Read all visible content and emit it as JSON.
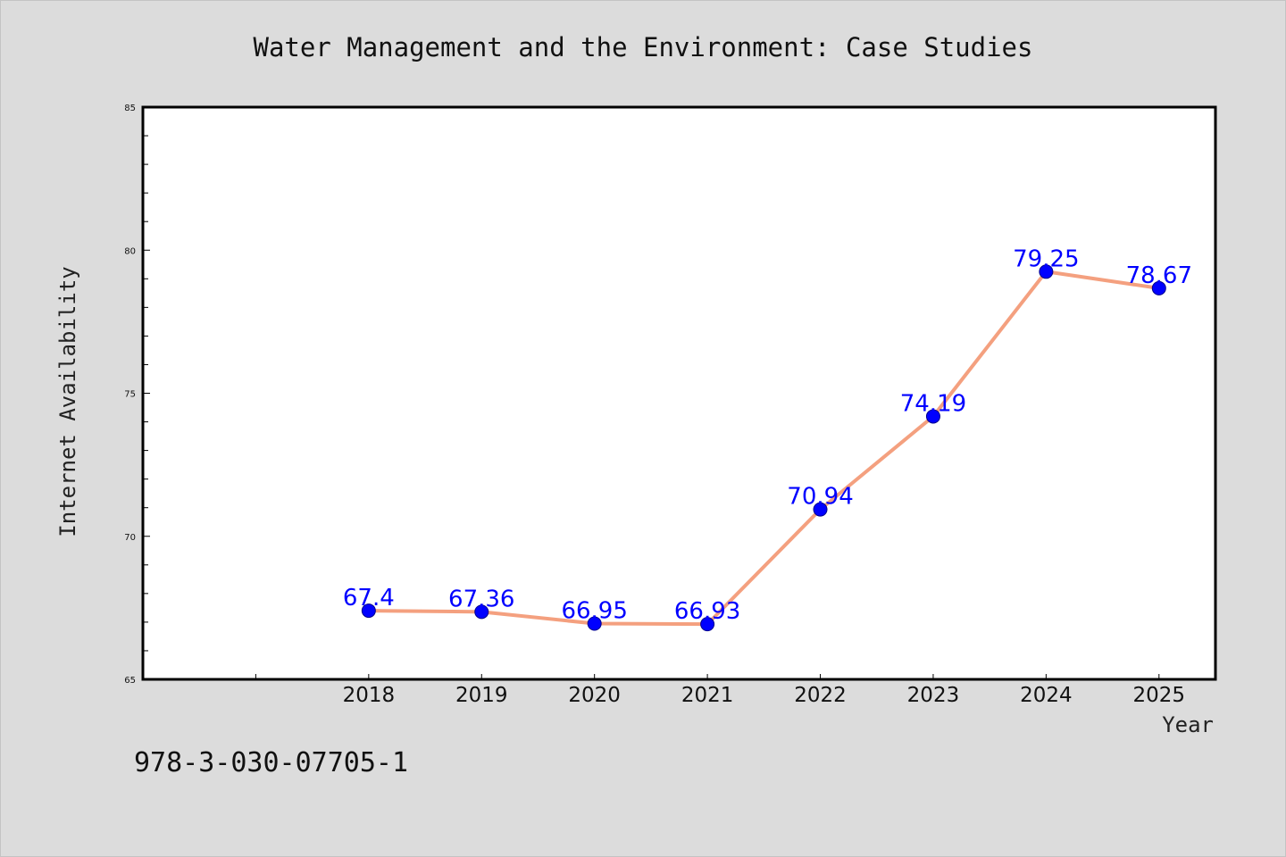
{
  "chart_data": {
    "type": "line",
    "title": "Water Management and the Environment: Case Studies",
    "xlabel": "Year",
    "ylabel": "Internet Availability",
    "x": [
      "2018",
      "2019",
      "2020",
      "2021",
      "2022",
      "2023",
      "2024",
      "2025"
    ],
    "values": [
      67.4,
      67.36,
      66.95,
      66.93,
      70.94,
      74.19,
      79.25,
      78.67
    ],
    "data_labels": [
      "67.4",
      "67.36",
      "66.95",
      "66.93",
      "70.94",
      "74.19",
      "79.25",
      "78.67"
    ],
    "ylim": [
      65,
      85
    ],
    "y_ticks": [
      "65",
      "70",
      "75",
      "80",
      "85"
    ],
    "x_range": [
      2016,
      2025.5
    ],
    "grid": false,
    "legend": "none",
    "colors": {
      "line": "#f4a07f",
      "marker": "#0000ff",
      "label": "#0000ff",
      "background": "#dcdcdc",
      "plot_background": "#ffffff"
    }
  },
  "footer": {
    "isbn": "978-3-030-07705-1"
  }
}
